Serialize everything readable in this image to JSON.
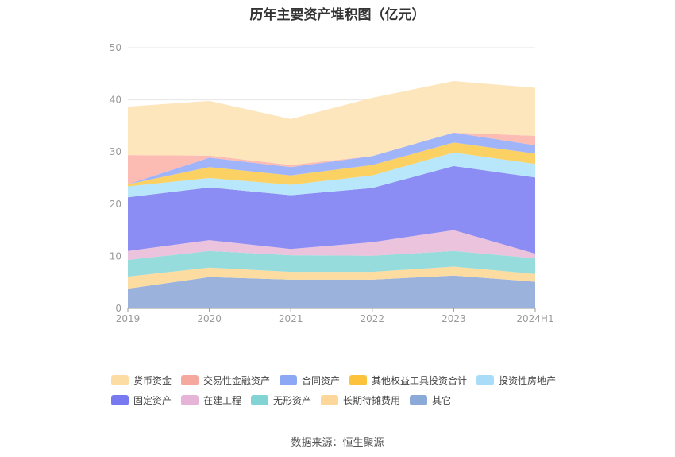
{
  "chart_data": {
    "type": "area",
    "title": "历年主要资产堆积图（亿元）",
    "categories": [
      "2019",
      "2020",
      "2021",
      "2022",
      "2023",
      "2024H1"
    ],
    "ylim": [
      0,
      50
    ],
    "yticks": [
      0,
      10,
      20,
      30,
      40,
      50
    ],
    "grid": true,
    "legend_position": "bottom",
    "series": [
      {
        "name": "其它",
        "color": "#9bb3dc",
        "values": [
          3.8,
          6.0,
          5.5,
          5.5,
          6.3,
          5.1
        ]
      },
      {
        "name": "长期待摊费用",
        "color": "#fcdca0",
        "values": [
          2.3,
          1.8,
          1.5,
          1.5,
          1.7,
          1.5
        ]
      },
      {
        "name": "无形资产",
        "color": "#96dcdc",
        "values": [
          3.2,
          3.2,
          3.2,
          3.1,
          3.0,
          3.0
        ]
      },
      {
        "name": "在建工程",
        "color": "#ebc3dc",
        "values": [
          1.7,
          2.1,
          1.2,
          2.6,
          4.0,
          0.9
        ]
      },
      {
        "name": "固定资产",
        "color": "#8c8cf5",
        "values": [
          10.3,
          10.1,
          10.3,
          10.4,
          12.3,
          14.6
        ]
      },
      {
        "name": "投资性房地产",
        "color": "#b8e6fa",
        "values": [
          2.1,
          1.8,
          2.0,
          2.4,
          2.6,
          2.6
        ]
      },
      {
        "name": "其他权益工具投资合计",
        "color": "#fcd164",
        "values": [
          0.4,
          2.1,
          1.8,
          2.0,
          1.9,
          2.0
        ]
      },
      {
        "name": "合同资产",
        "color": "#a0b4fa",
        "values": [
          0.0,
          1.8,
          1.6,
          1.7,
          1.9,
          1.6
        ]
      },
      {
        "name": "交易性金融资产",
        "color": "#fcbcb4",
        "values": [
          5.6,
          0.4,
          0.4,
          0.0,
          0.0,
          1.8
        ]
      },
      {
        "name": "货币资金",
        "color": "#fde5bc",
        "values": [
          9.3,
          10.5,
          8.8,
          11.2,
          9.9,
          9.2
        ]
      }
    ],
    "source": "数据来源：恒生聚源"
  },
  "legend": {
    "rows": [
      [
        {
          "label": "货币资金",
          "color": "#fddca4"
        },
        {
          "label": "交易性金融资产",
          "color": "#f5a89e"
        },
        {
          "label": "合同资产",
          "color": "#8ca8f5"
        },
        {
          "label": "其他权益工具投资合计",
          "color": "#fcc23c"
        },
        {
          "label": "投资性房地产",
          "color": "#a8dcf8"
        }
      ],
      [
        {
          "label": "固定资产",
          "color": "#7878f0"
        },
        {
          "label": "在建工程",
          "color": "#e6b4d7"
        },
        {
          "label": "无形资产",
          "color": "#82d4d4"
        },
        {
          "label": "长期待摊费用",
          "color": "#fcd799"
        },
        {
          "label": "其它",
          "color": "#8caad7"
        }
      ]
    ]
  }
}
